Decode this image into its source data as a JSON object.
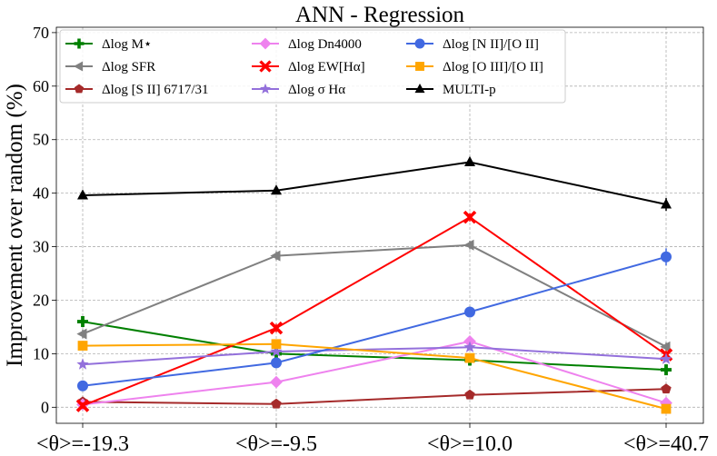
{
  "chart_data": {
    "type": "line",
    "title": "ANN - Regression",
    "xlabel": "",
    "ylabel": "Improvement over random (%)",
    "ylim": [
      -3,
      71
    ],
    "yticks": [
      0,
      10,
      20,
      30,
      40,
      50,
      60,
      70
    ],
    "categories": [
      "<θ>=-19.3",
      "<θ>=-9.5",
      "<θ>=10.0",
      "<θ>=40.7"
    ],
    "legend_position": "top-left",
    "series": [
      {
        "name": "Δlog M⋆",
        "color": "#008000",
        "marker": "plus",
        "values": [
          16.0,
          10.0,
          8.8,
          7.0
        ],
        "errors": [
          0.8,
          0.6,
          0.6,
          0.8
        ]
      },
      {
        "name": "Δlog SFR",
        "color": "#808080",
        "marker": "triangle-left",
        "values": [
          13.7,
          28.3,
          30.3,
          11.3
        ],
        "errors": [
          0.8,
          0.8,
          0.8,
          0.8
        ]
      },
      {
        "name": "Δlog [S II] 6717/31",
        "color": "#a52a2a",
        "marker": "pentagon",
        "values": [
          1.0,
          0.6,
          2.3,
          3.4
        ],
        "errors": [
          0.4,
          0.4,
          0.4,
          0.4
        ]
      },
      {
        "name": "Δlog Dn4000",
        "color": "#ee82ee",
        "marker": "diamond",
        "values": [
          0.5,
          4.7,
          12.3,
          0.8
        ],
        "errors": [
          0.5,
          0.6,
          0.8,
          0.6
        ]
      },
      {
        "name": "Δlog EW[Hα]",
        "color": "#ff0000",
        "marker": "x",
        "values": [
          0.3,
          14.8,
          35.5,
          9.8
        ],
        "errors": [
          0.6,
          0.8,
          0.8,
          0.8
        ]
      },
      {
        "name": "Δlog σ Hα",
        "color": "#9370db",
        "marker": "star",
        "values": [
          8.0,
          10.4,
          11.2,
          9.0
        ],
        "errors": [
          0.5,
          0.5,
          0.5,
          0.5
        ]
      },
      {
        "name": "Δlog [N II]/[O II]",
        "color": "#4169e1",
        "marker": "circle",
        "values": [
          4.0,
          8.3,
          17.8,
          28.1
        ],
        "errors": [
          0.6,
          0.8,
          0.8,
          1.6
        ]
      },
      {
        "name": "Δlog [O III]/[O II]",
        "color": "#ffa500",
        "marker": "square",
        "values": [
          11.5,
          11.8,
          9.2,
          -0.3
        ],
        "errors": [
          0.6,
          0.6,
          0.6,
          0.8
        ]
      },
      {
        "name": "MULTI-p",
        "color": "#000000",
        "marker": "triangle-up",
        "values": [
          39.6,
          40.5,
          45.8,
          37.9
        ],
        "errors": [
          0.6,
          0.6,
          0.6,
          1.2
        ]
      }
    ]
  }
}
